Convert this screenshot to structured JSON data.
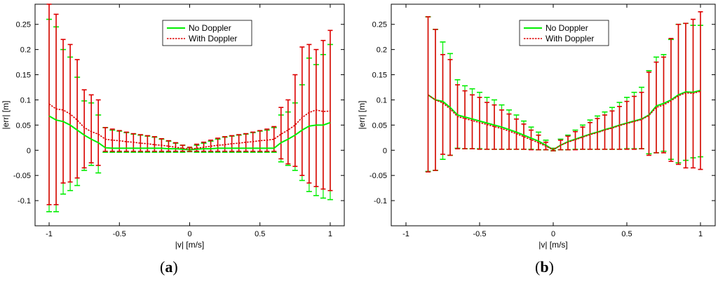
{
  "chart_data": [
    {
      "id": "a",
      "type": "line",
      "panel_label_open": "(",
      "panel_label_letter": "a",
      "panel_label_close": ")",
      "xlabel": "|v| [m/s]",
      "ylabel": "|err| [m]",
      "xlim": [
        -1.1,
        1.1
      ],
      "ylim": [
        -0.15,
        0.29
      ],
      "xticks": [
        -1,
        -0.5,
        0,
        0.5,
        1
      ],
      "xtick_labels": [
        "-1",
        "-0.5",
        "0",
        "0.5",
        "1"
      ],
      "yticks": [
        -0.1,
        -0.05,
        0,
        0.05,
        0.1,
        0.15,
        0.2,
        0.25
      ],
      "ytick_labels": [
        "-0.1",
        "-0.05",
        "0",
        "0.05",
        "0.1",
        "0.15",
        "0.2",
        "0.25"
      ],
      "legend": {
        "position": "top-center"
      },
      "series": [
        {
          "name": "No Doppler",
          "color": "#00ee00",
          "style": "solid",
          "x": [
            -1,
            -0.95,
            -0.9,
            -0.85,
            -0.8,
            -0.75,
            -0.7,
            -0.65,
            -0.6,
            -0.55,
            -0.5,
            -0.45,
            -0.4,
            -0.35,
            -0.3,
            -0.25,
            -0.2,
            -0.15,
            -0.1,
            -0.05,
            0,
            0.05,
            0.1,
            0.15,
            0.2,
            0.25,
            0.3,
            0.35,
            0.4,
            0.45,
            0.5,
            0.55,
            0.6,
            0.65,
            0.7,
            0.75,
            0.8,
            0.85,
            0.9,
            0.95,
            1
          ],
          "y": [
            0.068,
            0.06,
            0.057,
            0.05,
            0.04,
            0.03,
            0.022,
            0.015,
            0.005,
            0.004,
            0.004,
            0.004,
            0.004,
            0.004,
            0.004,
            0.004,
            0.004,
            0.003,
            0.003,
            0.002,
            0.001,
            0.002,
            0.003,
            0.003,
            0.004,
            0.004,
            0.004,
            0.004,
            0.004,
            0.004,
            0.004,
            0.004,
            0.004,
            0.015,
            0.022,
            0.03,
            0.04,
            0.048,
            0.05,
            0.05,
            0.055
          ],
          "upper": [
            0.26,
            0.245,
            0.2,
            0.185,
            0.145,
            0.098,
            0.094,
            0.07,
            0.045,
            0.04,
            0.038,
            0.035,
            0.032,
            0.03,
            0.028,
            0.026,
            0.022,
            0.018,
            0.014,
            0.01,
            0.005,
            0.01,
            0.014,
            0.018,
            0.022,
            0.026,
            0.028,
            0.03,
            0.032,
            0.035,
            0.038,
            0.04,
            0.045,
            0.07,
            0.076,
            0.094,
            0.13,
            0.183,
            0.17,
            0.19,
            0.21
          ],
          "lower": [
            -0.122,
            -0.122,
            -0.087,
            -0.08,
            -0.07,
            -0.04,
            -0.03,
            -0.045,
            -0.004,
            -0.004,
            -0.004,
            -0.004,
            -0.004,
            -0.004,
            -0.004,
            -0.004,
            -0.004,
            -0.004,
            -0.004,
            -0.004,
            -0.003,
            -0.004,
            -0.004,
            -0.004,
            -0.004,
            -0.004,
            -0.004,
            -0.004,
            -0.004,
            -0.004,
            -0.004,
            -0.004,
            -0.004,
            -0.023,
            -0.03,
            -0.04,
            -0.06,
            -0.082,
            -0.09,
            -0.095,
            -0.098
          ]
        },
        {
          "name": "With Doppler",
          "color": "#dd0000",
          "style": "dotted",
          "x": [
            -1,
            -0.95,
            -0.9,
            -0.85,
            -0.8,
            -0.75,
            -0.7,
            -0.65,
            -0.6,
            -0.55,
            -0.5,
            -0.45,
            -0.4,
            -0.35,
            -0.3,
            -0.25,
            -0.2,
            -0.15,
            -0.1,
            -0.05,
            0,
            0.05,
            0.1,
            0.15,
            0.2,
            0.25,
            0.3,
            0.35,
            0.4,
            0.45,
            0.5,
            0.55,
            0.6,
            0.65,
            0.7,
            0.75,
            0.8,
            0.85,
            0.9,
            0.95,
            1
          ],
          "y": [
            0.092,
            0.082,
            0.08,
            0.072,
            0.06,
            0.045,
            0.037,
            0.032,
            0.022,
            0.02,
            0.019,
            0.017,
            0.016,
            0.014,
            0.013,
            0.011,
            0.01,
            0.008,
            0.006,
            0.004,
            0.002,
            0.004,
            0.006,
            0.008,
            0.01,
            0.011,
            0.013,
            0.014,
            0.016,
            0.017,
            0.019,
            0.02,
            0.022,
            0.032,
            0.04,
            0.05,
            0.065,
            0.075,
            0.08,
            0.077,
            0.078
          ],
          "upper": [
            0.29,
            0.27,
            0.22,
            0.21,
            0.18,
            0.12,
            0.11,
            0.1,
            0.045,
            0.042,
            0.039,
            0.036,
            0.033,
            0.031,
            0.029,
            0.027,
            0.023,
            0.019,
            0.015,
            0.01,
            0.006,
            0.012,
            0.016,
            0.02,
            0.024,
            0.027,
            0.029,
            0.031,
            0.033,
            0.036,
            0.039,
            0.042,
            0.047,
            0.085,
            0.1,
            0.15,
            0.205,
            0.21,
            0.2,
            0.218,
            0.238
          ],
          "lower": [
            -0.108,
            -0.108,
            -0.065,
            -0.063,
            -0.055,
            -0.035,
            -0.025,
            -0.03,
            -0.002,
            -0.002,
            -0.002,
            -0.002,
            -0.002,
            -0.002,
            -0.002,
            -0.002,
            -0.002,
            -0.002,
            -0.002,
            -0.002,
            -0.002,
            -0.002,
            -0.002,
            -0.002,
            -0.002,
            -0.002,
            -0.002,
            -0.002,
            -0.002,
            -0.002,
            -0.002,
            -0.002,
            -0.002,
            -0.017,
            -0.027,
            -0.032,
            -0.05,
            -0.065,
            -0.072,
            -0.077,
            -0.08
          ]
        }
      ]
    },
    {
      "id": "b",
      "type": "line",
      "panel_label_open": "(",
      "panel_label_letter": "b",
      "panel_label_close": ")",
      "xlabel": "|v| [m/s]",
      "ylabel": "|err| [m]",
      "xlim": [
        -1.1,
        1.1
      ],
      "ylim": [
        -0.15,
        0.29
      ],
      "xticks": [
        -1,
        -0.5,
        0,
        0.5,
        1
      ],
      "xtick_labels": [
        "-1",
        "-0.5",
        "0",
        "0.5",
        "1"
      ],
      "yticks": [
        -0.1,
        -0.05,
        0,
        0.05,
        0.1,
        0.15,
        0.2,
        0.25
      ],
      "ytick_labels": [
        "-0.1",
        "-0.05",
        "0",
        "0.05",
        "0.1",
        "0.15",
        "0.2",
        "0.25"
      ],
      "legend": {
        "position": "top-center"
      },
      "series": [
        {
          "name": "No Doppler",
          "color": "#00ee00",
          "style": "solid",
          "x": [
            -0.85,
            -0.8,
            -0.75,
            -0.7,
            -0.65,
            -0.6,
            -0.55,
            -0.5,
            -0.45,
            -0.4,
            -0.35,
            -0.3,
            -0.25,
            -0.2,
            -0.15,
            -0.1,
            -0.05,
            0,
            0.05,
            0.1,
            0.15,
            0.2,
            0.25,
            0.3,
            0.35,
            0.4,
            0.45,
            0.5,
            0.55,
            0.6,
            0.65,
            0.7,
            0.75,
            0.8,
            0.85,
            0.9,
            0.95,
            1
          ],
          "y": [
            0.11,
            0.1,
            0.097,
            0.085,
            0.07,
            0.066,
            0.062,
            0.058,
            0.054,
            0.05,
            0.046,
            0.041,
            0.036,
            0.03,
            0.024,
            0.018,
            0.01,
            0.001,
            0.01,
            0.017,
            0.022,
            0.027,
            0.032,
            0.036,
            0.041,
            0.045,
            0.05,
            0.054,
            0.058,
            0.062,
            0.07,
            0.088,
            0.093,
            0.1,
            0.11,
            0.116,
            0.115,
            0.119
          ],
          "upper": [
            0.265,
            0.24,
            0.215,
            0.192,
            0.14,
            0.128,
            0.122,
            0.115,
            0.105,
            0.1,
            0.09,
            0.08,
            0.07,
            0.058,
            0.046,
            0.036,
            0.02,
            0.004,
            0.022,
            0.03,
            0.04,
            0.05,
            0.06,
            0.068,
            0.076,
            0.085,
            0.095,
            0.105,
            0.115,
            0.125,
            0.158,
            0.185,
            0.19,
            0.22,
            0.25,
            0.252,
            0.248,
            0.248
          ],
          "lower": [
            -0.042,
            -0.04,
            -0.018,
            -0.01,
            0.004,
            0.003,
            0.003,
            0.003,
            0.002,
            0.002,
            0.002,
            0.002,
            0.002,
            0.002,
            0.002,
            0.001,
            0.001,
            -0.001,
            0.001,
            0.001,
            0.002,
            0.002,
            0.002,
            0.002,
            0.002,
            0.002,
            0.002,
            0.003,
            0.003,
            0.003,
            -0.007,
            -0.005,
            -0.002,
            -0.018,
            -0.025,
            -0.02,
            -0.015,
            -0.013
          ]
        },
        {
          "name": "With Doppler",
          "color": "#dd0000",
          "style": "dotted",
          "x": [
            -0.85,
            -0.8,
            -0.75,
            -0.7,
            -0.65,
            -0.6,
            -0.55,
            -0.5,
            -0.45,
            -0.4,
            -0.35,
            -0.3,
            -0.25,
            -0.2,
            -0.15,
            -0.1,
            -0.05,
            0,
            0.05,
            0.1,
            0.15,
            0.2,
            0.25,
            0.3,
            0.35,
            0.4,
            0.45,
            0.5,
            0.55,
            0.6,
            0.65,
            0.7,
            0.75,
            0.8,
            0.85,
            0.9,
            0.95,
            1
          ],
          "y": [
            0.11,
            0.1,
            0.094,
            0.082,
            0.067,
            0.063,
            0.059,
            0.055,
            0.051,
            0.047,
            0.043,
            0.038,
            0.033,
            0.027,
            0.021,
            0.015,
            0.008,
            0.001,
            0.01,
            0.016,
            0.021,
            0.026,
            0.031,
            0.035,
            0.04,
            0.044,
            0.049,
            0.053,
            0.057,
            0.061,
            0.069,
            0.085,
            0.09,
            0.098,
            0.108,
            0.114,
            0.113,
            0.117
          ],
          "upper": [
            0.265,
            0.24,
            0.19,
            0.18,
            0.13,
            0.118,
            0.11,
            0.105,
            0.095,
            0.09,
            0.08,
            0.072,
            0.062,
            0.052,
            0.04,
            0.03,
            0.016,
            0.003,
            0.02,
            0.028,
            0.037,
            0.046,
            0.055,
            0.063,
            0.07,
            0.078,
            0.087,
            0.097,
            0.107,
            0.115,
            0.155,
            0.175,
            0.185,
            0.222,
            0.25,
            0.252,
            0.26,
            0.275
          ],
          "lower": [
            -0.043,
            -0.04,
            -0.008,
            -0.01,
            0.003,
            0.003,
            0.003,
            0.002,
            0.002,
            0.002,
            0.002,
            0.002,
            0.002,
            0.002,
            0.001,
            0.001,
            0.001,
            -0.001,
            0.001,
            0.001,
            0.001,
            0.002,
            0.002,
            0.002,
            0.002,
            0.002,
            0.002,
            0.002,
            0.002,
            0.003,
            -0.01,
            -0.005,
            -0.005,
            -0.022,
            -0.028,
            -0.035,
            -0.035,
            -0.038
          ]
        }
      ]
    }
  ]
}
